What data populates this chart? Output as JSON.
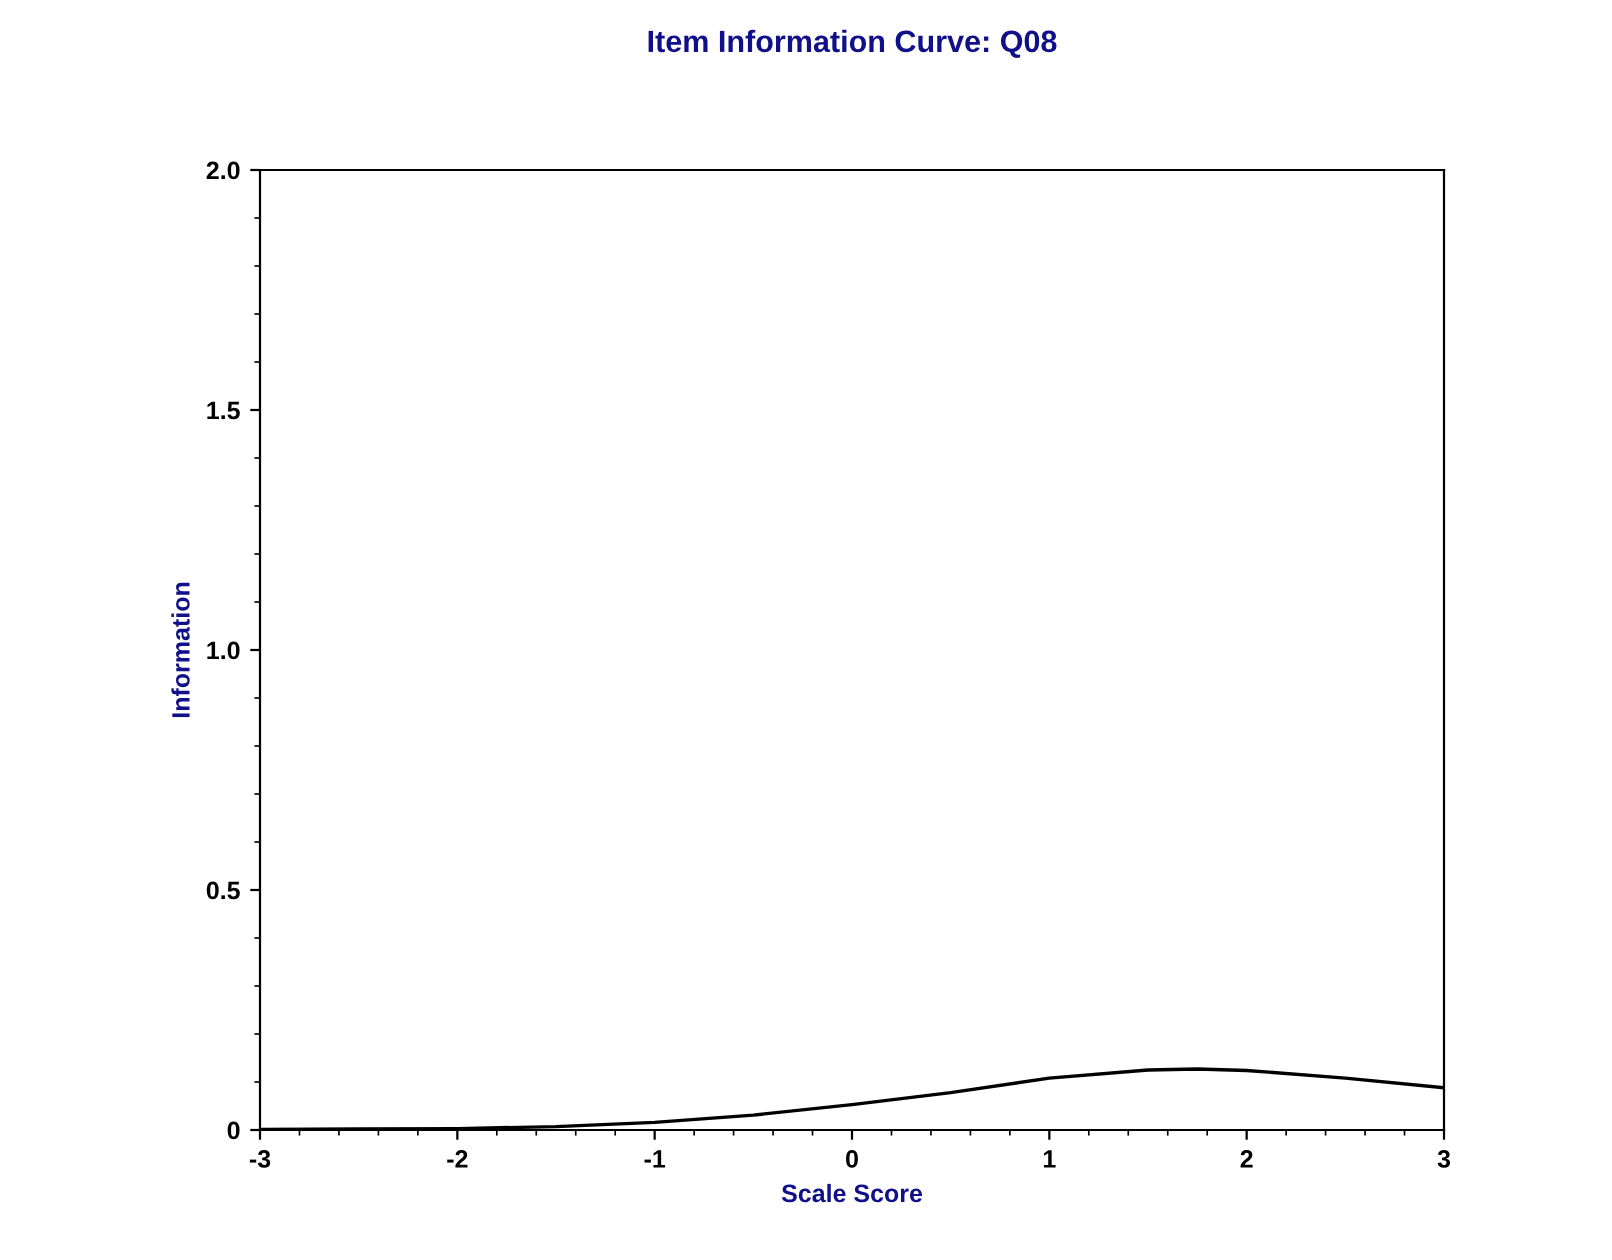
{
  "chart_data": {
    "type": "line",
    "title": "Item Information Curve: Q08",
    "xlabel": "Scale Score",
    "ylabel": "Information",
    "series": [
      {
        "color": "#000000",
        "x": [
          -3,
          -2.5,
          -2,
          -1.5,
          -1,
          -0.5,
          0,
          0.5,
          1,
          1.5,
          1.75,
          2,
          2.5,
          3
        ],
        "values": [
          0.001,
          0.002,
          0.003,
          0.007,
          0.016,
          0.031,
          0.053,
          0.078,
          0.108,
          0.125,
          0.127,
          0.124,
          0.108,
          0.088
        ]
      }
    ],
    "xlim": [
      -3,
      3
    ],
    "xticks": [
      -3,
      -2,
      -1,
      0,
      1,
      2,
      3
    ],
    "ylim": [
      0,
      2.0
    ],
    "yticks": [
      {
        "value": 0,
        "label": "0"
      },
      {
        "value": 0.5,
        "label": "0.5"
      },
      {
        "value": 1.0,
        "label": "1.0"
      },
      {
        "value": 1.5,
        "label": "1.5"
      },
      {
        "value": 2.0,
        "label": "2.0"
      }
    ],
    "grid": false,
    "legend": false,
    "marker": "none",
    "line_style": "solid"
  }
}
